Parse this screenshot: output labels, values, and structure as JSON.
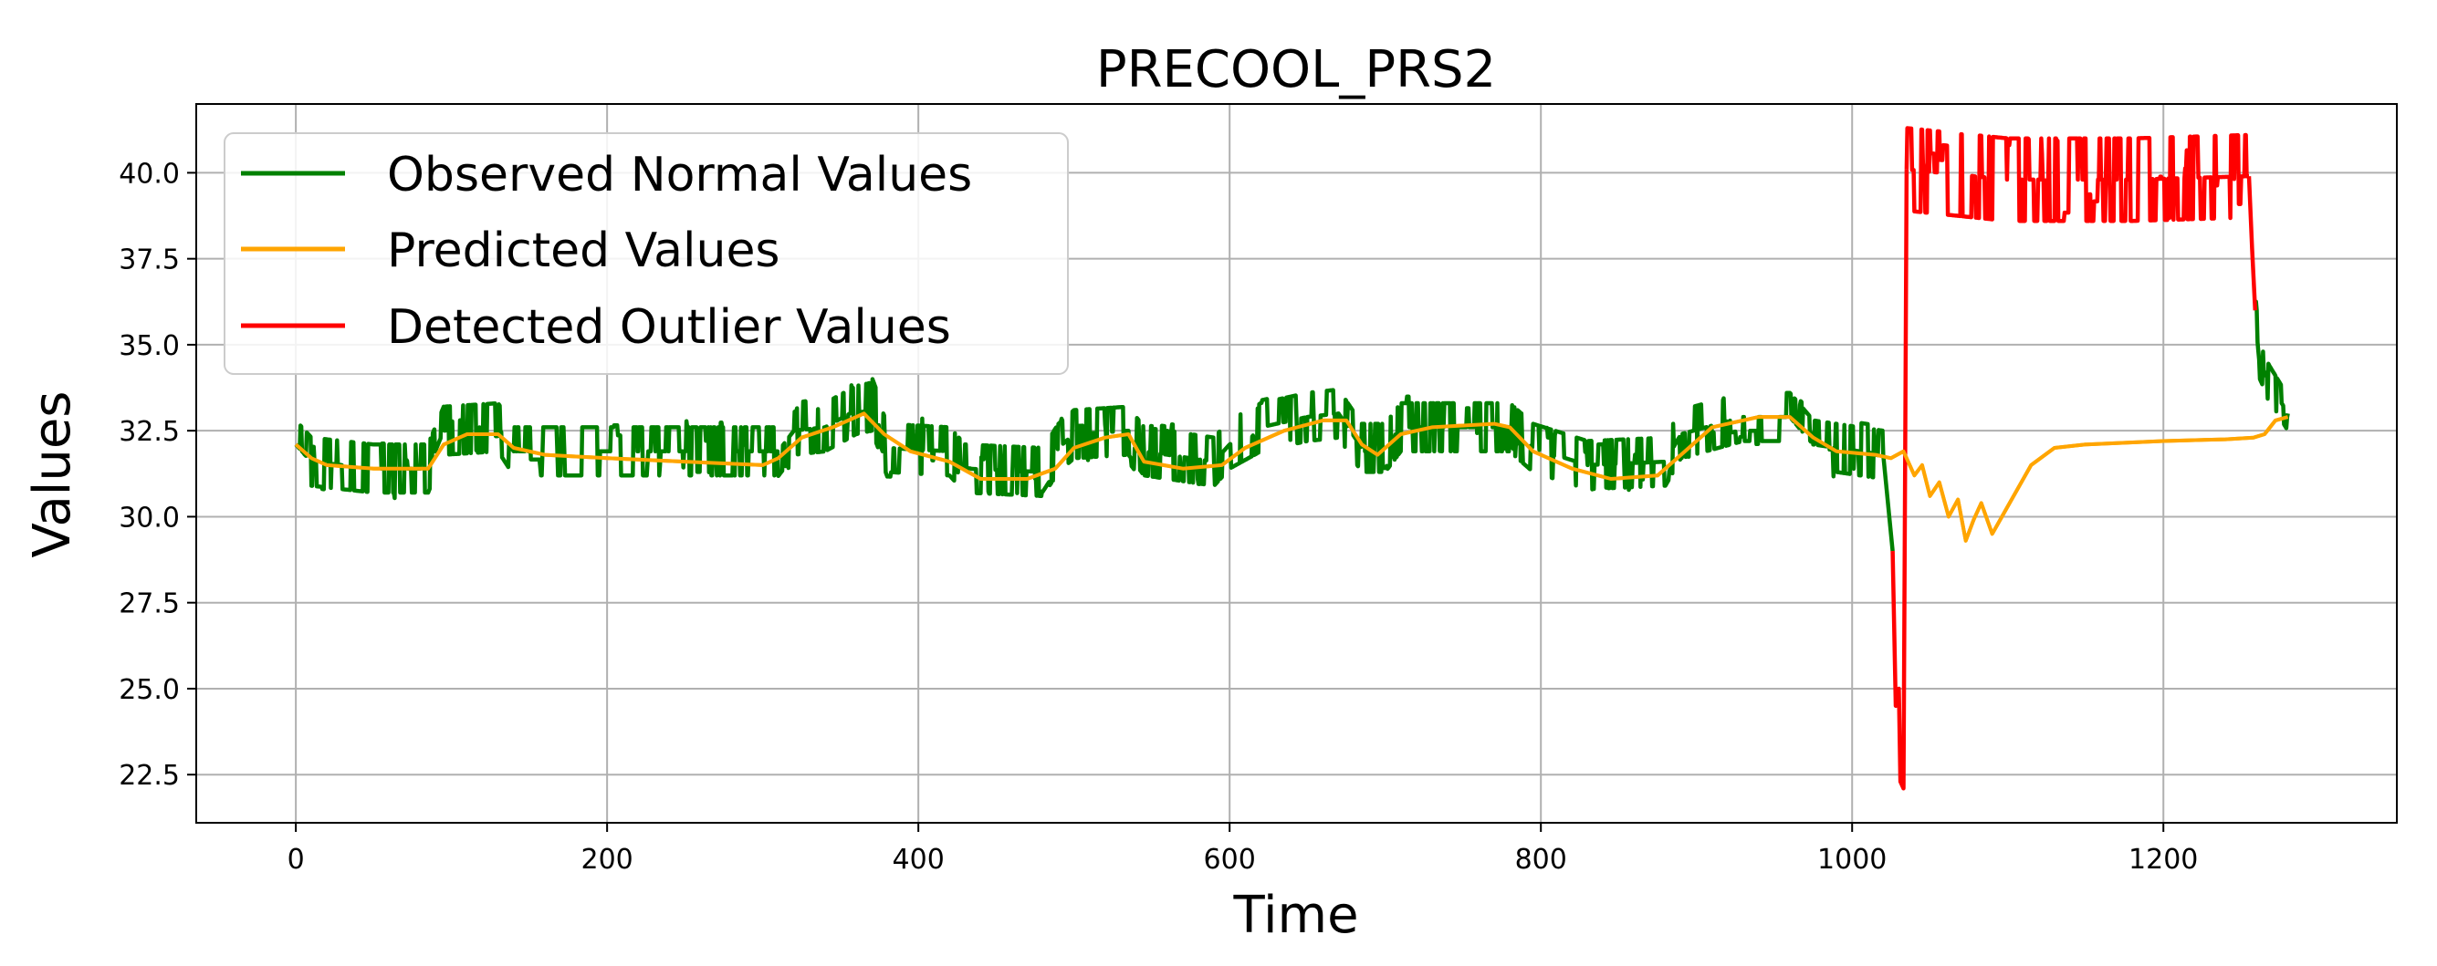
{
  "chart_data": {
    "type": "line",
    "title": "PRECOOL_PRS2",
    "xlabel": "Time",
    "ylabel": "Values",
    "xlim": [
      -64,
      1350
    ],
    "ylim": [
      21.1,
      42.0
    ],
    "x_ticks": [
      0,
      200,
      400,
      600,
      800,
      1000,
      1200
    ],
    "y_ticks": [
      22.5,
      25.0,
      27.5,
      30.0,
      32.5,
      35.0,
      37.5,
      40.0
    ],
    "grid": true,
    "legend_position": "top-left",
    "series": [
      {
        "name": "Observed Normal Values",
        "color": "#008000",
        "style": "noisy",
        "segments": [
          {
            "points": [
              [
                0,
                32.1
              ],
              [
                10,
                31.6
              ],
              [
                50,
                31.4
              ],
              [
                85,
                31.4
              ],
              [
                95,
                32.5
              ],
              [
                130,
                32.6
              ],
              [
                140,
                31.9
              ],
              [
                200,
                31.9
              ],
              [
                250,
                31.9
              ],
              [
                310,
                31.9
              ],
              [
                320,
                32.5
              ],
              [
                340,
                32.6
              ],
              [
                360,
                33.1
              ],
              [
                370,
                33.2
              ],
              [
                380,
                32.0
              ],
              [
                420,
                31.9
              ],
              [
                430,
                31.4
              ],
              [
                480,
                31.3
              ],
              [
                490,
                32.0
              ],
              [
                500,
                32.4
              ],
              [
                535,
                32.5
              ],
              [
                545,
                31.9
              ],
              [
                590,
                31.6
              ],
              [
                600,
                32.1
              ],
              [
                620,
                32.6
              ],
              [
                650,
                32.9
              ],
              [
                670,
                33.0
              ],
              [
                685,
                32.0
              ],
              [
                700,
                32.0
              ],
              [
                710,
                32.6
              ],
              [
                780,
                32.6
              ],
              [
                795,
                32.0
              ],
              [
                830,
                31.5
              ],
              [
                880,
                31.6
              ],
              [
                890,
                32.4
              ],
              [
                930,
                32.9
              ],
              [
                960,
                32.9
              ],
              [
                975,
                32.1
              ],
              [
                1020,
                31.8
              ]
            ],
            "noise": 0.7
          },
          {
            "points": [
              [
                1020,
                31.8
              ],
              [
                1026,
                29.0
              ]
            ],
            "noise": 0
          },
          {
            "points": [
              [
                1259,
                36.0
              ],
              [
                1262,
                34.5
              ],
              [
                1268,
                33.9
              ],
              [
                1280,
                33.0
              ]
            ],
            "noise": 0.5
          }
        ]
      },
      {
        "name": "Predicted Values",
        "color": "#ffa500",
        "style": "line",
        "segments": [
          {
            "points": [
              [
                0,
                32.1
              ],
              [
                10,
                31.7
              ],
              [
                20,
                31.5
              ],
              [
                50,
                31.4
              ],
              [
                85,
                31.4
              ],
              [
                95,
                32.1
              ],
              [
                110,
                32.4
              ],
              [
                130,
                32.4
              ],
              [
                140,
                32.0
              ],
              [
                160,
                31.8
              ],
              [
                200,
                31.7
              ],
              [
                250,
                31.6
              ],
              [
                300,
                31.5
              ],
              [
                310,
                31.7
              ],
              [
                325,
                32.3
              ],
              [
                345,
                32.6
              ],
              [
                365,
                33.0
              ],
              [
                378,
                32.4
              ],
              [
                395,
                31.9
              ],
              [
                420,
                31.6
              ],
              [
                440,
                31.1
              ],
              [
                470,
                31.1
              ],
              [
                488,
                31.4
              ],
              [
                500,
                32.0
              ],
              [
                520,
                32.3
              ],
              [
                535,
                32.4
              ],
              [
                545,
                31.6
              ],
              [
                570,
                31.4
              ],
              [
                595,
                31.5
              ],
              [
                610,
                32.0
              ],
              [
                635,
                32.5
              ],
              [
                660,
                32.8
              ],
              [
                675,
                32.8
              ],
              [
                685,
                32.1
              ],
              [
                695,
                31.8
              ],
              [
                710,
                32.4
              ],
              [
                730,
                32.6
              ],
              [
                770,
                32.7
              ],
              [
                780,
                32.6
              ],
              [
                795,
                31.9
              ],
              [
                820,
                31.4
              ],
              [
                845,
                31.1
              ],
              [
                875,
                31.2
              ],
              [
                890,
                31.8
              ],
              [
                910,
                32.6
              ],
              [
                940,
                32.9
              ],
              [
                960,
                32.9
              ],
              [
                975,
                32.3
              ],
              [
                990,
                31.9
              ],
              [
                1015,
                31.8
              ],
              [
                1025,
                31.7
              ],
              [
                1033,
                31.9
              ],
              [
                1040,
                31.2
              ],
              [
                1045,
                31.5
              ],
              [
                1050,
                30.6
              ],
              [
                1056,
                31.0
              ],
              [
                1062,
                30.0
              ],
              [
                1068,
                30.5
              ],
              [
                1073,
                29.3
              ],
              [
                1078,
                29.9
              ],
              [
                1083,
                30.4
              ],
              [
                1090,
                29.5
              ],
              [
                1100,
                30.3
              ],
              [
                1115,
                31.5
              ],
              [
                1130,
                32.0
              ],
              [
                1150,
                32.1
              ],
              [
                1200,
                32.2
              ],
              [
                1240,
                32.25
              ],
              [
                1258,
                32.3
              ],
              [
                1265,
                32.4
              ],
              [
                1272,
                32.8
              ],
              [
                1280,
                32.9
              ]
            ],
            "noise": 0
          }
        ]
      },
      {
        "name": "Detected Outlier Values",
        "color": "#ff0000",
        "style": "noisy",
        "segments": [
          {
            "points": [
              [
                1026,
                29.0
              ],
              [
                1028,
                24.5
              ],
              [
                1030,
                25.0
              ],
              [
                1031,
                22.3
              ],
              [
                1033,
                22.1
              ],
              [
                1035,
                40.1
              ]
            ],
            "noise": 0
          },
          {
            "points": [
              [
                1035,
                40.1
              ],
              [
                1100,
                39.8
              ],
              [
                1180,
                39.8
              ],
              [
                1255,
                39.9
              ]
            ],
            "noise": 1.2
          },
          {
            "points": [
              [
                1255,
                39.9
              ],
              [
                1257,
                37.8
              ],
              [
                1259,
                36.0
              ]
            ],
            "noise": 0
          }
        ]
      }
    ]
  }
}
